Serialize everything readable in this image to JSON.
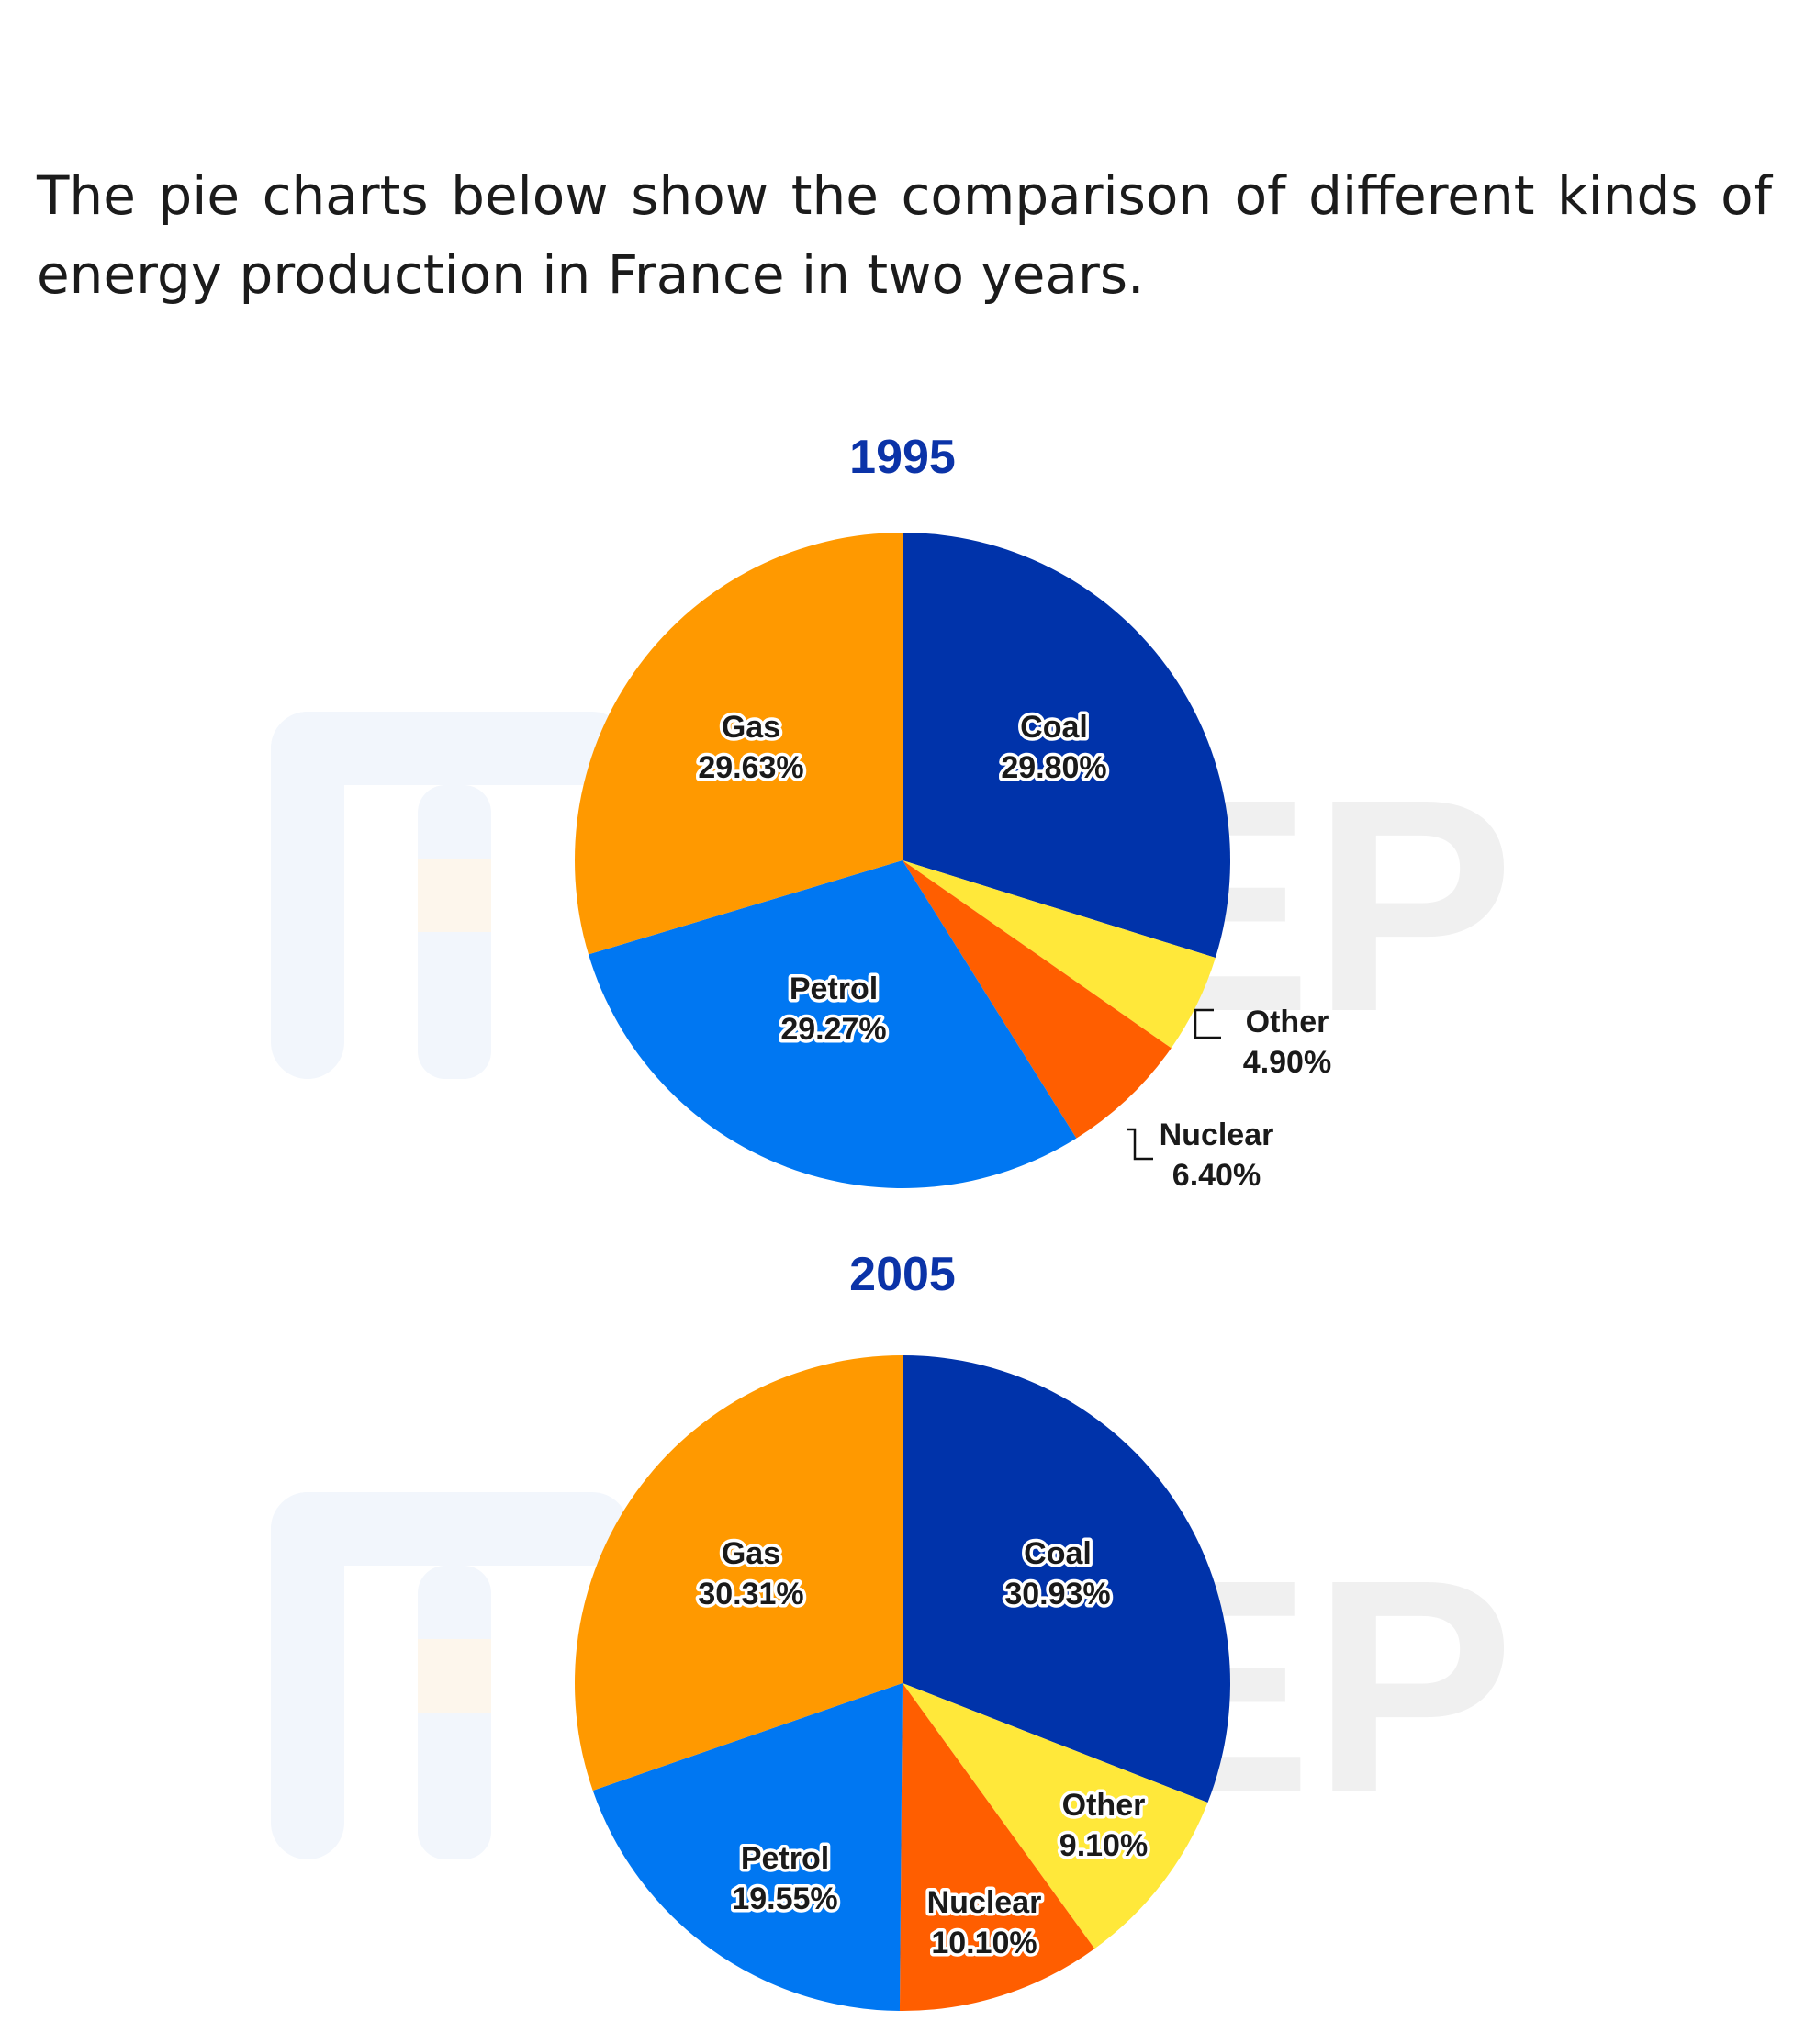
{
  "intro_text": "The pie charts below show the comparison of different kinds of energy production in France in two years.",
  "watermark": "PREP",
  "colors": {
    "Coal": "#0033aa",
    "Other": "#ffe83a",
    "Nuclear": "#ff5e00",
    "Petrol": "#0077f2",
    "Gas": "#ff9900",
    "title": "#0b33a8"
  },
  "chart_data": [
    {
      "type": "pie",
      "title": "1995",
      "labels": [
        "Coal",
        "Other",
        "Nuclear",
        "Petrol",
        "Gas"
      ],
      "values": [
        29.8,
        4.9,
        6.4,
        29.27,
        29.63
      ],
      "value_labels": [
        "29.80%",
        "4.90%",
        "6.40%",
        "29.27%",
        "29.63%"
      ],
      "start": "12 o'clock",
      "direction": "clockwise"
    },
    {
      "type": "pie",
      "title": "2005",
      "labels": [
        "Coal",
        "Other",
        "Nuclear",
        "Petrol",
        "Gas"
      ],
      "values": [
        30.93,
        9.1,
        10.1,
        19.55,
        30.31
      ],
      "value_labels": [
        "30.93%",
        "9.10%",
        "10.10%",
        "19.55%",
        "30.31%"
      ],
      "start": "12 o'clock",
      "direction": "clockwise"
    }
  ]
}
